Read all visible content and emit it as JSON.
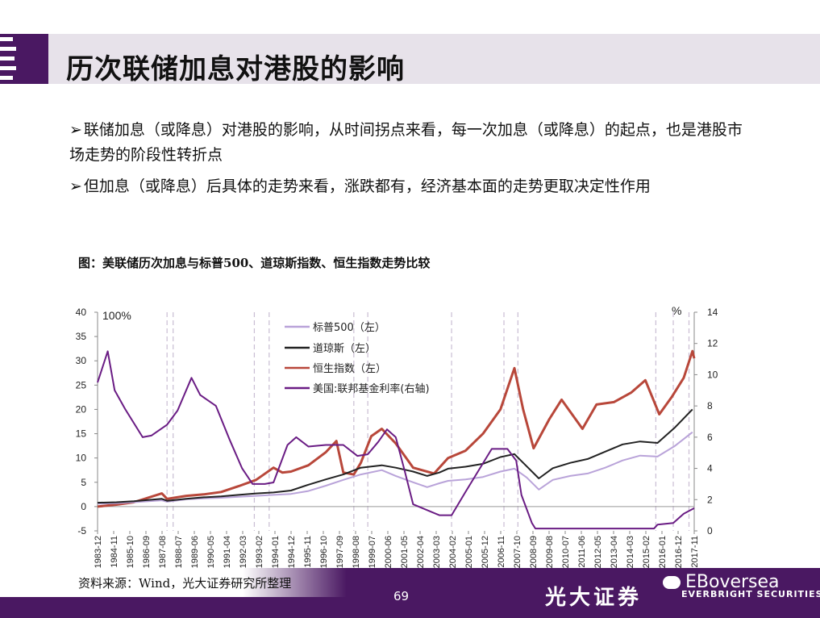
{
  "slide": {
    "title": "历次联储加息对港股的影响",
    "bullets": [
      {
        "marker": "➢",
        "text": "联储加息（或降息）对港股的影响，从时间拐点来看，每一次加息（或降息）的起点，也是港股市场走势的阶段性转折点"
      },
      {
        "marker": "➢",
        "text": "但加息（或降息）后具体的走势来看，涨跌都有，经济基本面的走势更取决定性作用"
      }
    ],
    "caption": "图：美联储历次加息与标普500、道琼斯指数、恒生指数走势比较",
    "source": "资料来源：Wind，光大证券研究所整理",
    "page_number": "69",
    "brand_cn": "光大证券",
    "brand_en": "EVERBRIGHT SECURITIES",
    "watermark": "EBoversea"
  },
  "colors": {
    "purple_dark": "#4a1862",
    "sp500": "#b9a3d9",
    "dow": "#222222",
    "hsi": "#b8473a",
    "fed": "#6a1c84",
    "grid_dash": "#c9bdd3"
  },
  "chart_data": {
    "type": "line",
    "left_axis": {
      "min": -5,
      "max": 40,
      "ticks": [
        -5,
        0,
        5,
        10,
        15,
        20,
        25,
        30,
        35,
        40
      ],
      "unit_label": "100%"
    },
    "right_axis": {
      "min": 0,
      "max": 14,
      "ticks": [
        0,
        2,
        4,
        6,
        8,
        10,
        12,
        14
      ],
      "unit_label": "%"
    },
    "x_range": [
      1983.92,
      2018.1
    ],
    "x_tick_labels": [
      "1983-12",
      "1984-11",
      "1985-10",
      "1986-09",
      "1987-08",
      "1988-07",
      "1989-06",
      "1990-05",
      "1991-04",
      "1992-03",
      "1993-02",
      "1994-01",
      "1994-12",
      "1995-11",
      "1996-10",
      "1997-09",
      "1998-08",
      "1999-07",
      "2000-06",
      "2001-05",
      "2002-04",
      "2003-03",
      "2004-02",
      "2005-01",
      "2005-12",
      "2006-11",
      "2007-10",
      "2008-09",
      "2009-08",
      "2010-07",
      "2011-06",
      "2012-05",
      "2013-04",
      "2014-03",
      "2015-02",
      "2016-01",
      "2016-12",
      "2017-11"
    ],
    "hike_start_dates": [
      1987.9,
      1988.25,
      1992.9,
      1993.75,
      1998.6,
      1999.4,
      2004.2,
      2007.2,
      2008.0,
      2015.9,
      2016.9,
      2017.8
    ],
    "series": [
      {
        "name": "标普500（左）",
        "axis": "left",
        "points": [
          [
            1983.92,
            0.6
          ],
          [
            1985,
            0.7
          ],
          [
            1986,
            0.9
          ],
          [
            1987.6,
            1.3
          ],
          [
            1987.9,
            1.0
          ],
          [
            1989,
            1.5
          ],
          [
            1990,
            1.7
          ],
          [
            1991,
            1.8
          ],
          [
            1992,
            2.0
          ],
          [
            1993,
            2.2
          ],
          [
            1994,
            2.4
          ],
          [
            1995,
            2.6
          ],
          [
            1996,
            3.2
          ],
          [
            1997,
            4.3
          ],
          [
            1998,
            5.5
          ],
          [
            1999,
            6.6
          ],
          [
            2000.2,
            7.5
          ],
          [
            2001,
            6.3
          ],
          [
            2002,
            5.0
          ],
          [
            2002.8,
            4.0
          ],
          [
            2003.5,
            4.8
          ],
          [
            2004,
            5.3
          ],
          [
            2005,
            5.6
          ],
          [
            2006,
            6.1
          ],
          [
            2007,
            7.2
          ],
          [
            2007.8,
            7.8
          ],
          [
            2008.5,
            6.0
          ],
          [
            2009.2,
            3.5
          ],
          [
            2010,
            5.5
          ],
          [
            2011,
            6.3
          ],
          [
            2012,
            6.8
          ],
          [
            2013,
            8.0
          ],
          [
            2014,
            9.5
          ],
          [
            2015,
            10.5
          ],
          [
            2016,
            10.3
          ],
          [
            2017,
            12.5
          ],
          [
            2018,
            15.3
          ]
        ]
      },
      {
        "name": "道琼斯（左）",
        "axis": "left",
        "points": [
          [
            1983.92,
            0.8
          ],
          [
            1985,
            0.9
          ],
          [
            1986,
            1.1
          ],
          [
            1987.6,
            1.6
          ],
          [
            1987.9,
            1.2
          ],
          [
            1989,
            1.6
          ],
          [
            1990,
            1.9
          ],
          [
            1991,
            2.1
          ],
          [
            1992,
            2.4
          ],
          [
            1993,
            2.7
          ],
          [
            1994,
            2.9
          ],
          [
            1995,
            3.3
          ],
          [
            1996,
            4.5
          ],
          [
            1997,
            5.6
          ],
          [
            1998,
            6.6
          ],
          [
            1999,
            8.0
          ],
          [
            2000.2,
            8.5
          ],
          [
            2001,
            8.0
          ],
          [
            2002,
            7.2
          ],
          [
            2002.8,
            6.3
          ],
          [
            2003.5,
            7.0
          ],
          [
            2004,
            7.8
          ],
          [
            2005,
            8.2
          ],
          [
            2006,
            8.8
          ],
          [
            2007,
            10.2
          ],
          [
            2007.8,
            10.8
          ],
          [
            2008.5,
            8.3
          ],
          [
            2009.2,
            5.8
          ],
          [
            2010,
            7.9
          ],
          [
            2011,
            9.0
          ],
          [
            2012,
            9.8
          ],
          [
            2013,
            11.3
          ],
          [
            2014,
            12.8
          ],
          [
            2015,
            13.4
          ],
          [
            2016,
            13.1
          ],
          [
            2017,
            16.3
          ],
          [
            2018,
            20.0
          ]
        ]
      },
      {
        "name": "恒生指数（左）",
        "axis": "left",
        "points": [
          [
            1983.92,
            0.0
          ],
          [
            1985,
            0.4
          ],
          [
            1986,
            0.9
          ],
          [
            1987.6,
            2.7
          ],
          [
            1987.9,
            1.6
          ],
          [
            1989,
            2.2
          ],
          [
            1990,
            2.5
          ],
          [
            1991,
            3.0
          ],
          [
            1992,
            4.2
          ],
          [
            1993,
            5.5
          ],
          [
            1994,
            8.0
          ],
          [
            1994.5,
            7.0
          ],
          [
            1995,
            7.2
          ],
          [
            1996,
            8.5
          ],
          [
            1997,
            11.2
          ],
          [
            1997.6,
            13.5
          ],
          [
            1998,
            7.0
          ],
          [
            1998.6,
            6.6
          ],
          [
            1999,
            9.0
          ],
          [
            1999.6,
            14.5
          ],
          [
            2000.2,
            16.0
          ],
          [
            2001,
            13.0
          ],
          [
            2002,
            8.0
          ],
          [
            2003.2,
            6.8
          ],
          [
            2004,
            10.0
          ],
          [
            2005,
            11.5
          ],
          [
            2006,
            15.0
          ],
          [
            2007,
            20.0
          ],
          [
            2007.8,
            28.5
          ],
          [
            2008.3,
            20.0
          ],
          [
            2008.9,
            12.0
          ],
          [
            2009.8,
            18.0
          ],
          [
            2010.5,
            22.0
          ],
          [
            2011.7,
            16.0
          ],
          [
            2012.5,
            21.0
          ],
          [
            2013.5,
            21.5
          ],
          [
            2014.5,
            23.5
          ],
          [
            2015.3,
            26.0
          ],
          [
            2016.1,
            19.0
          ],
          [
            2016.8,
            22.5
          ],
          [
            2017.5,
            26.5
          ],
          [
            2018.0,
            32.0
          ],
          [
            2018.1,
            30.5
          ]
        ]
      },
      {
        "name": "美国:联邦基金利率(右轴)",
        "axis": "right",
        "points": [
          [
            1983.92,
            9.5
          ],
          [
            1984.5,
            11.5
          ],
          [
            1984.9,
            9.0
          ],
          [
            1985.5,
            7.8
          ],
          [
            1986.5,
            6.0
          ],
          [
            1987,
            6.1
          ],
          [
            1987.9,
            6.8
          ],
          [
            1988.5,
            7.7
          ],
          [
            1989.3,
            9.8
          ],
          [
            1989.8,
            8.7
          ],
          [
            1990.7,
            8.0
          ],
          [
            1991.5,
            5.8
          ],
          [
            1992.2,
            4.0
          ],
          [
            1992.8,
            3.0
          ],
          [
            1993.5,
            3.0
          ],
          [
            1994,
            3.1
          ],
          [
            1994.8,
            5.5
          ],
          [
            1995.3,
            6.0
          ],
          [
            1996,
            5.4
          ],
          [
            1997,
            5.5
          ],
          [
            1998,
            5.5
          ],
          [
            1998.8,
            4.8
          ],
          [
            1999.4,
            4.9
          ],
          [
            2000,
            5.7
          ],
          [
            2000.5,
            6.5
          ],
          [
            2001,
            6.0
          ],
          [
            2001.5,
            3.9
          ],
          [
            2002,
            1.7
          ],
          [
            2003.5,
            1.0
          ],
          [
            2004.2,
            1.0
          ],
          [
            2005,
            2.5
          ],
          [
            2006.5,
            5.25
          ],
          [
            2007.4,
            5.25
          ],
          [
            2007.9,
            4.5
          ],
          [
            2008.2,
            2.3
          ],
          [
            2008.8,
            0.5
          ],
          [
            2009,
            0.15
          ],
          [
            2012,
            0.15
          ],
          [
            2015.8,
            0.15
          ],
          [
            2016.0,
            0.4
          ],
          [
            2016.9,
            0.5
          ],
          [
            2017.5,
            1.1
          ],
          [
            2018.1,
            1.45
          ]
        ]
      }
    ]
  }
}
